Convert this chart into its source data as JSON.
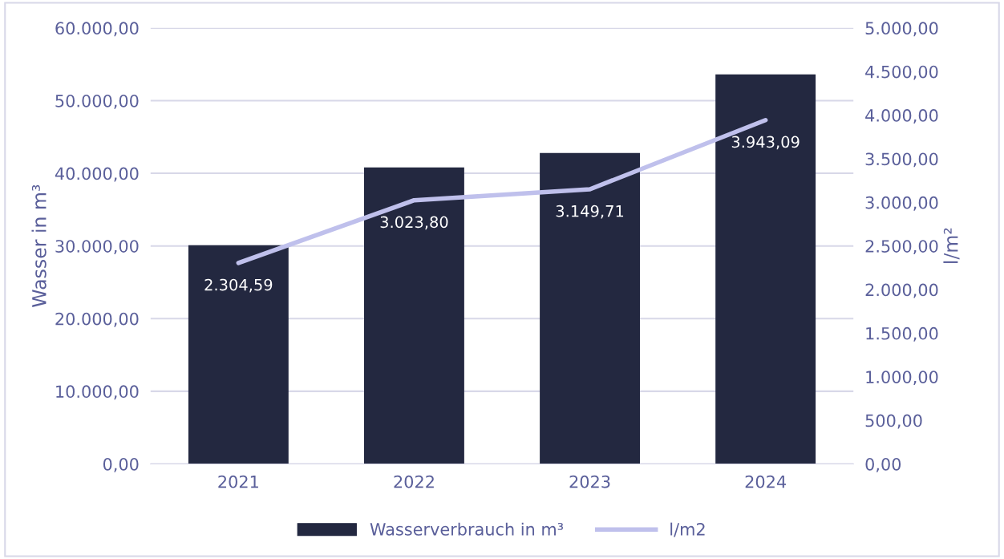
{
  "chart_data": {
    "type": "bar",
    "categories": [
      "2021",
      "2022",
      "2023",
      "2024"
    ],
    "ylabel": "Wasser in m³",
    "y2label": "l/m²",
    "series": [
      {
        "name": "Wasserverbrauch in m³",
        "color": "#232840",
        "values": [
          30100,
          40800,
          42800,
          53600
        ]
      },
      {
        "name": "l/m2",
        "type": "line",
        "axis": "y2",
        "color": "#bfc0ec",
        "values": [
          2304.59,
          3023.8,
          3149.71,
          3943.09
        ],
        "value_labels": [
          "2.304,59",
          "3.023,80",
          "3.149,71",
          "3.943,09"
        ]
      }
    ],
    "ylim": [
      0,
      60000
    ],
    "yticks": [
      {
        "value": 0,
        "label": "0,00"
      },
      {
        "value": 10000,
        "label": "10.000,00"
      },
      {
        "value": 20000,
        "label": "20.000,00"
      },
      {
        "value": 30000,
        "label": "30.000,00"
      },
      {
        "value": 40000,
        "label": "40.000,00"
      },
      {
        "value": 50000,
        "label": "50.000,00"
      },
      {
        "value": 60000,
        "label": "60.000,00"
      }
    ],
    "y2lim": [
      0,
      5000
    ],
    "y2ticks": [
      {
        "value": 0,
        "label": "0,00"
      },
      {
        "value": 500,
        "label": "500,00"
      },
      {
        "value": 1000,
        "label": "1.000,00"
      },
      {
        "value": 1500,
        "label": "1.500,00"
      },
      {
        "value": 2000,
        "label": "2.000,00"
      },
      {
        "value": 2500,
        "label": "2.500,00"
      },
      {
        "value": 3000,
        "label": "3.000,00"
      },
      {
        "value": 3500,
        "label": "3.500,00"
      },
      {
        "value": 4000,
        "label": "4.000,00"
      },
      {
        "value": 4500,
        "label": "4.500,00"
      },
      {
        "value": 5000,
        "label": "5.000,00"
      }
    ],
    "grid": "y",
    "legend": "bottom",
    "marker": "none",
    "line_style": "solid"
  }
}
